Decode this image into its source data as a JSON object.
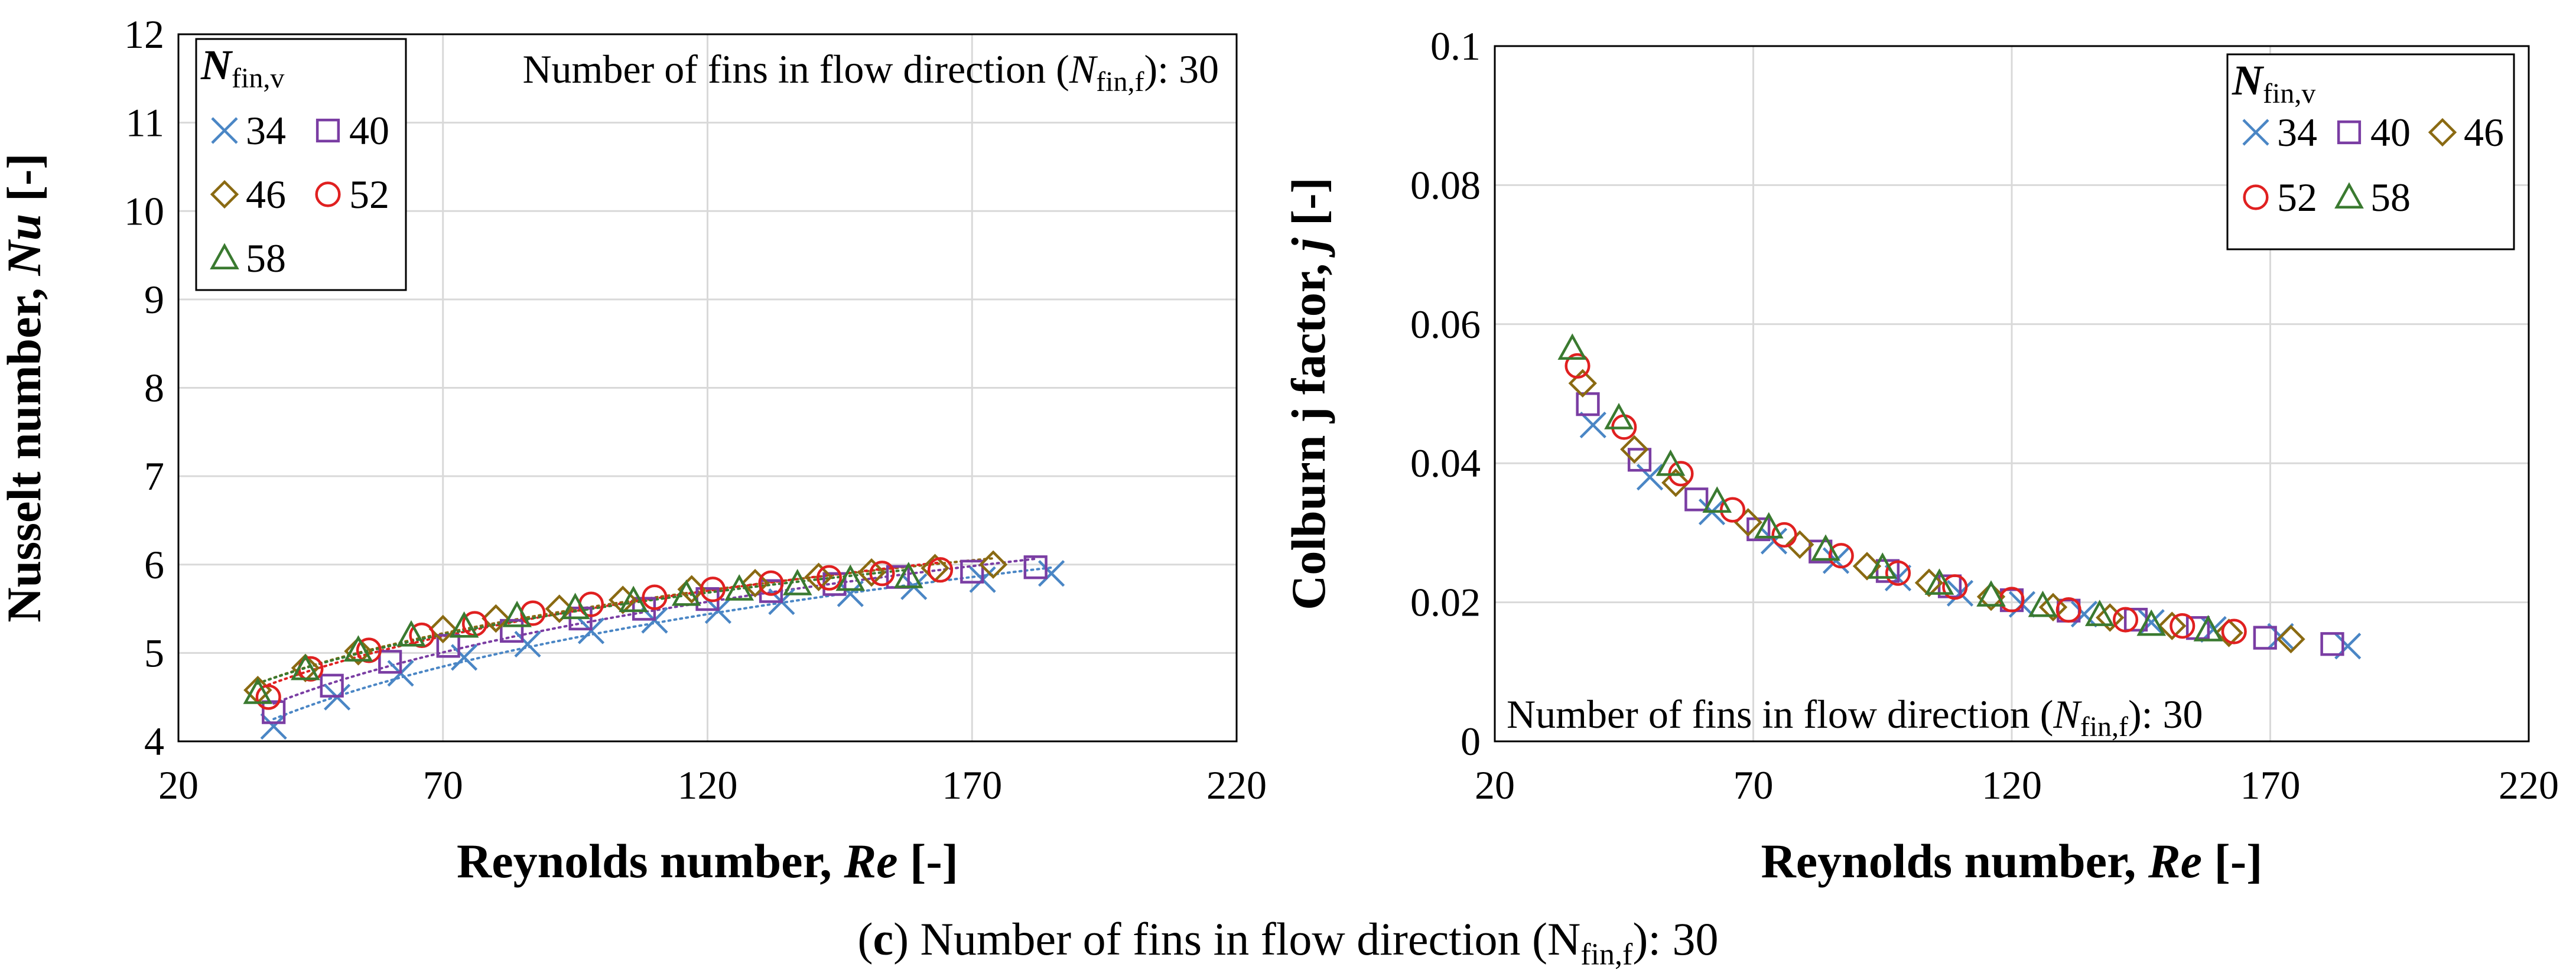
{
  "caption": {
    "label": "c",
    "text": "Number of fins in flow direction (N",
    "sub": "fin,f",
    "tail": "): 30"
  },
  "chart_data": [
    {
      "type": "scatter",
      "ylabel_pre": "Nusselt number, ",
      "ylabel_sym": "Nu",
      "ylabel_post": " [-]",
      "xlabel_pre": "Reynolds number, ",
      "xlabel_sym": "Re",
      "xlabel_post": " [-]",
      "xlim": [
        20,
        220
      ],
      "ylim": [
        4,
        12
      ],
      "xticks": [
        "20",
        "70",
        "120",
        "170",
        "220"
      ],
      "yticks": [
        "4",
        "5",
        "6",
        "7",
        "8",
        "9",
        "10",
        "11",
        "12"
      ],
      "annotation": {
        "pre": "Number of fins in flow direction (",
        "sym": "N",
        "sub": "fin,f",
        "post": "): 30"
      },
      "legend": {
        "title_sym": "N",
        "title_sub": "fin,v",
        "entries": [
          "34",
          "40",
          "46",
          "52",
          "58"
        ]
      },
      "trendlines": "dotted power fit per series",
      "series": [
        {
          "name": "34",
          "marker": "x",
          "color": "#4a86c5",
          "x": [
            38,
            50,
            62,
            74,
            86,
            98,
            110,
            122,
            134,
            147,
            159,
            172,
            185
          ],
          "y": [
            4.17,
            4.5,
            4.77,
            4.95,
            5.1,
            5.25,
            5.37,
            5.48,
            5.58,
            5.67,
            5.75,
            5.83,
            5.9
          ]
        },
        {
          "name": "40",
          "marker": "square",
          "color": "#7a3da3",
          "x": [
            38,
            49,
            60,
            71,
            83,
            96,
            108,
            120,
            132,
            144,
            156,
            170,
            182
          ],
          "y": [
            4.33,
            4.63,
            4.9,
            5.08,
            5.25,
            5.39,
            5.5,
            5.61,
            5.7,
            5.78,
            5.86,
            5.92,
            5.97
          ]
        },
        {
          "name": "46",
          "marker": "diamond",
          "color": "#8a6a12",
          "x": [
            35,
            44,
            54,
            70,
            80,
            92,
            104,
            117,
            129,
            141,
            151,
            163,
            174
          ],
          "y": [
            4.58,
            4.83,
            5.02,
            5.27,
            5.39,
            5.5,
            5.6,
            5.72,
            5.79,
            5.86,
            5.91,
            5.96,
            6.0
          ]
        },
        {
          "name": "52",
          "marker": "circle",
          "color": "#e02020",
          "x": [
            37,
            45,
            56,
            66,
            76,
            87,
            98,
            110,
            121,
            132,
            143,
            153,
            164
          ],
          "y": [
            4.5,
            4.82,
            5.03,
            5.2,
            5.33,
            5.45,
            5.55,
            5.63,
            5.72,
            5.79,
            5.85,
            5.9,
            5.94
          ]
        },
        {
          "name": "58",
          "marker": "triangle",
          "color": "#3a7a30",
          "x": [
            35,
            44,
            54,
            64,
            74,
            84,
            95,
            106,
            116,
            126,
            137,
            147,
            158
          ],
          "y": [
            4.55,
            4.82,
            5.03,
            5.2,
            5.3,
            5.42,
            5.51,
            5.59,
            5.66,
            5.72,
            5.78,
            5.83,
            5.86
          ]
        }
      ]
    },
    {
      "type": "scatter",
      "ylabel_pre": "Colburn j factor, ",
      "ylabel_sym": "j",
      "ylabel_post": " [-]",
      "xlabel_pre": "Reynolds number, ",
      "xlabel_sym": "Re",
      "xlabel_post": " [-]",
      "xlim": [
        20,
        220
      ],
      "ylim": [
        0,
        0.1
      ],
      "xticks": [
        "20",
        "70",
        "120",
        "170",
        "220"
      ],
      "yticks": [
        "0",
        "0.02",
        "0.04",
        "0.06",
        "0.08",
        "0.1"
      ],
      "annotation": {
        "pre": "Number of fins in flow direction (",
        "sym": "N",
        "sub": "fin,f",
        "post": "): 30"
      },
      "legend": {
        "title_sym": "N",
        "title_sub": "fin,v",
        "entries": [
          "34",
          "40",
          "46",
          "52",
          "58"
        ]
      },
      "series": [
        {
          "name": "34",
          "marker": "x",
          "color": "#4a86c5",
          "x": [
            39,
            50,
            62,
            74,
            86,
            98,
            110,
            122,
            134,
            147,
            159,
            172,
            185
          ],
          "y": [
            0.0455,
            0.038,
            0.033,
            0.0288,
            0.026,
            0.0235,
            0.0213,
            0.0197,
            0.0183,
            0.0171,
            0.0161,
            0.0151,
            0.0137
          ]
        },
        {
          "name": "40",
          "marker": "square",
          "color": "#7a3da3",
          "x": [
            38,
            48,
            59,
            71,
            83,
            96,
            108,
            120,
            131,
            144,
            156,
            169,
            182
          ],
          "y": [
            0.0485,
            0.0405,
            0.0348,
            0.0305,
            0.0273,
            0.0245,
            0.0223,
            0.0203,
            0.0188,
            0.0175,
            0.0163,
            0.0149,
            0.014
          ]
        },
        {
          "name": "46",
          "marker": "diamond",
          "color": "#8a6a12",
          "x": [
            37,
            47,
            55,
            69,
            79,
            92,
            104,
            116,
            128,
            139,
            151,
            162,
            174
          ],
          "y": [
            0.0515,
            0.042,
            0.0372,
            0.0315,
            0.0283,
            0.0252,
            0.0228,
            0.0208,
            0.0193,
            0.0178,
            0.0166,
            0.0156,
            0.0147
          ]
        },
        {
          "name": "52",
          "marker": "circle",
          "color": "#e02020",
          "x": [
            36,
            45,
            56,
            66,
            76,
            87,
            98,
            109,
            120,
            131,
            142,
            153,
            163
          ],
          "y": [
            0.054,
            0.0452,
            0.0385,
            0.0333,
            0.0297,
            0.0267,
            0.0242,
            0.0222,
            0.0204,
            0.0189,
            0.0175,
            0.0166,
            0.0158
          ]
        },
        {
          "name": "58",
          "marker": "triangle",
          "color": "#3a7a30",
          "x": [
            35,
            44,
            54,
            63,
            73,
            84,
            95,
            106,
            116,
            126,
            137,
            147,
            158
          ],
          "y": [
            0.0565,
            0.0465,
            0.0398,
            0.0345,
            0.0308,
            0.0276,
            0.025,
            0.0227,
            0.021,
            0.0195,
            0.0182,
            0.0168,
            0.016
          ]
        }
      ]
    }
  ]
}
